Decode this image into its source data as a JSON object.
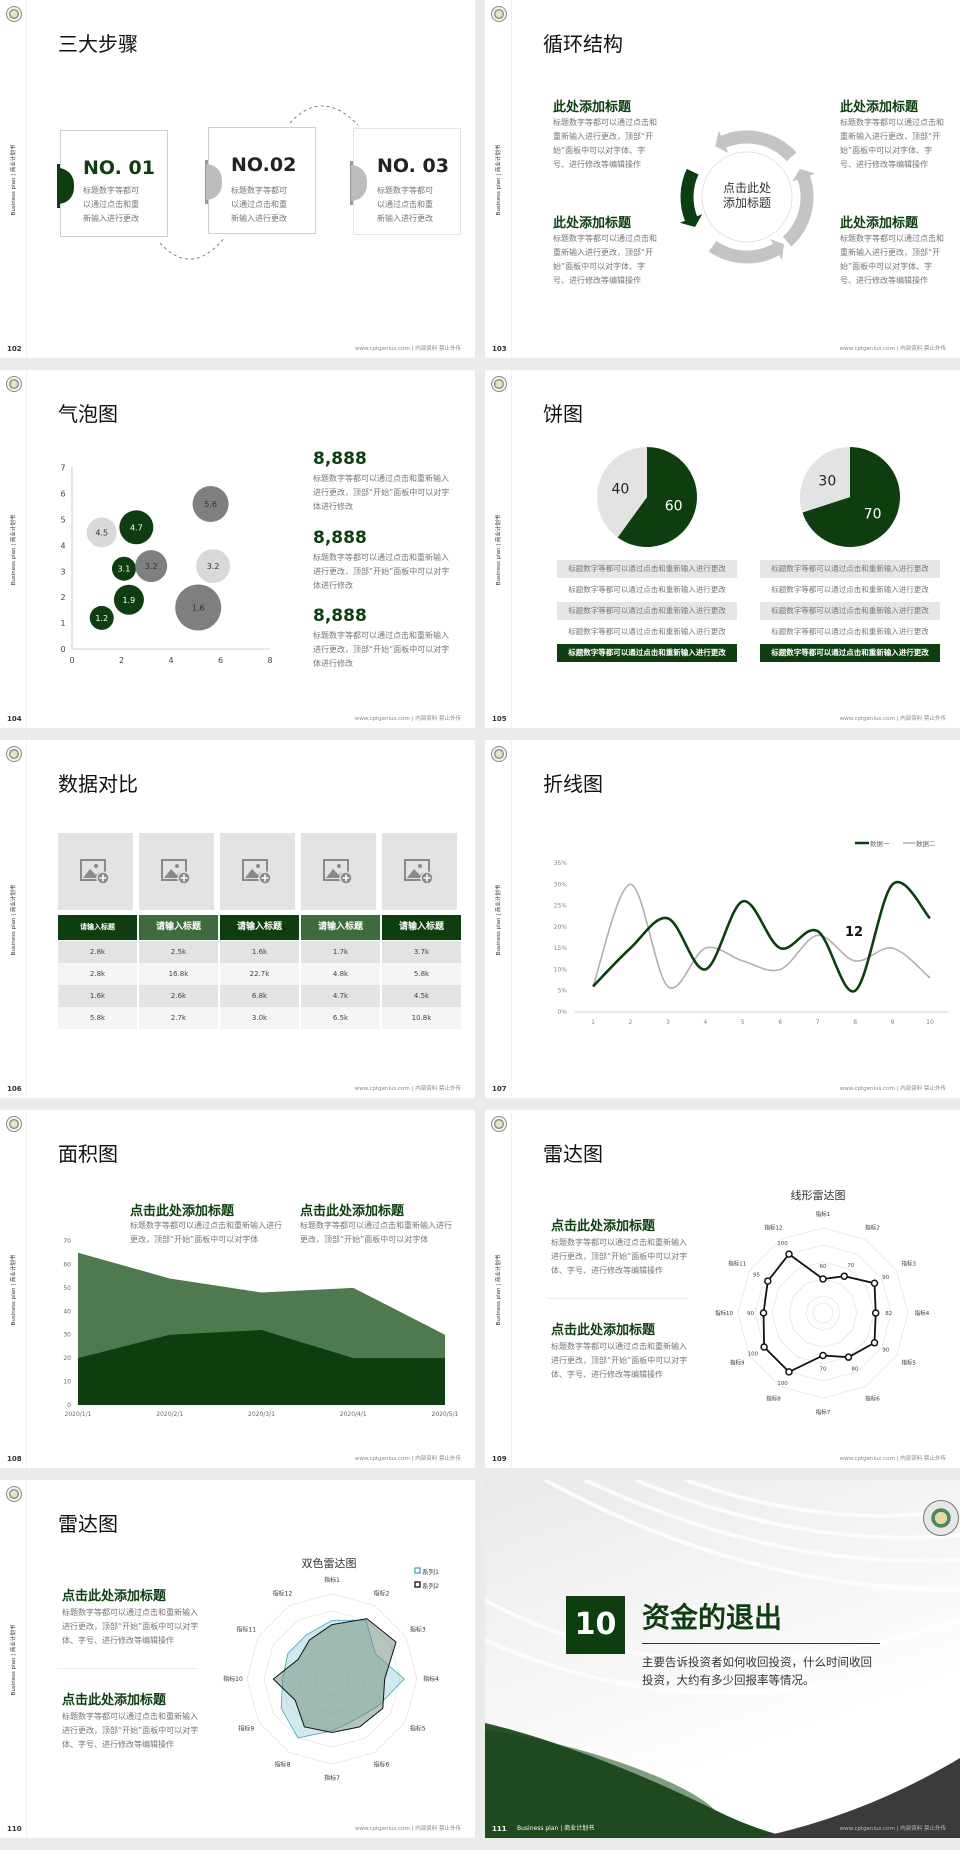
{
  "common": {
    "side_label": "Business plan | 商业计划书",
    "footer": "www.cptgenius.com | 内部资料 禁止外传"
  },
  "colors": {
    "primary_green": "#0e3e10",
    "mid_green": "#3e6b3e",
    "area_back": "#4f7a50",
    "gray": "#bdbdbd",
    "light_gray": "#e0e0e0",
    "teal": "#4aa3b5"
  },
  "slides": {
    "s102": {
      "page": "102",
      "title": "三大步骤",
      "steps": [
        {
          "no": "NO. 01",
          "desc": "标题数字等都可以通过点击和重新输入进行更改"
        },
        {
          "no": "NO.02",
          "desc": "标题数字等都可以通过点击和重新输入进行更改"
        },
        {
          "no": "NO. 03",
          "desc": "标题数字等都可以通过点击和重新输入进行更改"
        }
      ]
    },
    "s103": {
      "page": "103",
      "title": "循环结构",
      "center_line1": "点击此处",
      "center_line2": "添加标题",
      "blocks": [
        {
          "heading": "此处添加标题",
          "desc": "标题数字等都可以通过点击和重新输入进行更改，顶部“开始”面板中可以对字体、字号、进行修改等编辑操作"
        },
        {
          "heading": "此处添加标题",
          "desc": "标题数字等都可以通过点击和重新输入进行更改，顶部“开始”面板中可以对字体、字号、进行修改等编辑操作"
        },
        {
          "heading": "此处添加标题",
          "desc": "标题数字等都可以通过点击和重新输入进行更改，顶部“开始”面板中可以对字体、字号、进行修改等编辑操作"
        },
        {
          "heading": "此处添加标题",
          "desc": "标题数字等都可以通过点击和重新输入进行更改，顶部“开始”面板中可以对字体、字号、进行修改等编辑操作"
        }
      ]
    },
    "s104": {
      "page": "104",
      "title": "气泡图",
      "stats": [
        {
          "value": "8,888",
          "desc": "标题数字等都可以通过点击和重新输入进行更改，顶部“开始”面板中可以对字体进行修改"
        },
        {
          "value": "8,888",
          "desc": "标题数字等都可以通过点击和重新输入进行更改，顶部“开始”面板中可以对字体进行修改"
        },
        {
          "value": "8,888",
          "desc": "标题数字等都可以通过点击和重新输入进行更改，顶部“开始”面板中可以对字体进行修改"
        }
      ]
    },
    "s105": {
      "page": "105",
      "title": "饼图",
      "rows_left": [
        "标题数字等都可以通过点击和重新输入进行更改",
        "标题数字等都可以通过点击和重新输入进行更改",
        "标题数字等都可以通过点击和重新输入进行更改",
        "标题数字等都可以通过点击和重新输入进行更改",
        "标题数字等都可以通过点击和重新输入进行更改"
      ],
      "rows_right": [
        "标题数字等都可以通过点击和重新输入进行更改",
        "标题数字等都可以通过点击和重新输入进行更改",
        "标题数字等都可以通过点击和重新输入进行更改",
        "标题数字等都可以通过点击和重新输入进行更改",
        "标题数字等都可以通过点击和重新输入进行更改"
      ]
    },
    "s106": {
      "page": "106",
      "title": "数据对比",
      "headers": [
        "请输入标题",
        "请输入标题",
        "请输入标题",
        "请输入标题",
        "请输入标题"
      ],
      "rows": [
        [
          "2.8k",
          "2.5k",
          "1.6k",
          "1.7k",
          "3.7k"
        ],
        [
          "2.8k",
          "16.8k",
          "22.7k",
          "4.8k",
          "5.8k"
        ],
        [
          "1.6k",
          "2.6k",
          "6.8k",
          "4.7k",
          "4.5k"
        ],
        [
          "5.8k",
          "2.7k",
          "3.0k",
          "6.5k",
          "10.8k"
        ]
      ]
    },
    "s107": {
      "page": "107",
      "title": "折线图"
    },
    "s108": {
      "page": "108",
      "title": "面积图",
      "blocks": [
        {
          "heading": "点击此处添加标题",
          "desc": "标题数字等都可以通过点击和重新输入进行更改，顶部“开始”面板中可以对字体"
        },
        {
          "heading": "点击此处添加标题",
          "desc": "标题数字等都可以通过点击和重新输入进行更改，顶部“开始”面板中可以对字体"
        }
      ]
    },
    "s109": {
      "page": "109",
      "title": "雷达图",
      "blocks": [
        {
          "heading": "点击此处添加标题",
          "desc": "标题数字等都可以通过点击和重新输入进行更改，顶部“开始”面板中可以对字体、字号、进行修改等编辑操作"
        },
        {
          "heading": "点击此处添加标题",
          "desc": "标题数字等都可以通过点击和重新输入进行更改，顶部“开始”面板中可以对字体、字号、进行修改等编辑操作"
        }
      ]
    },
    "s110": {
      "page": "110",
      "title": "雷达图",
      "blocks": [
        {
          "heading": "点击此处添加标题",
          "desc": "标题数字等都可以通过点击和重新输入进行更改，顶部“开始”面板中可以对字体、字号、进行修改等编辑操作"
        },
        {
          "heading": "点击此处添加标题",
          "desc": "标题数字等都可以通过点击和重新输入进行更改，顶部“开始”面板中可以对字体、字号、进行修改等编辑操作"
        }
      ]
    },
    "s111": {
      "page": "111",
      "number": "10",
      "title": "资金的退出",
      "desc": "主要告诉投资者如何收回投资，什么时间收回投资，大约有多少回报率等情况。",
      "footer_left": "Business plan | 商业计划书"
    }
  },
  "chart_data": [
    {
      "type": "scatter",
      "variant": "bubble",
      "xlim": [
        0,
        8
      ],
      "ylim": [
        0,
        7
      ],
      "xticks": [
        "0",
        "2",
        "4",
        "6",
        "8"
      ],
      "yticks": [
        "0",
        "1",
        "2",
        "3",
        "4",
        "5",
        "6",
        "7"
      ],
      "grid": false,
      "points": [
        {
          "x": 1.2,
          "y": 4.5,
          "size": 15,
          "label": "4.5",
          "color": "#d9d9d9"
        },
        {
          "x": 2.6,
          "y": 4.7,
          "size": 17,
          "label": "4.7",
          "color": "#0e3e10"
        },
        {
          "x": 5.6,
          "y": 5.6,
          "size": 18,
          "label": "5.6",
          "color": "#7f7f7f"
        },
        {
          "x": 2.1,
          "y": 3.1,
          "size": 12,
          "label": "3.1",
          "color": "#0e3e10"
        },
        {
          "x": 3.2,
          "y": 3.2,
          "size": 16,
          "label": "3.2",
          "color": "#7f7f7f"
        },
        {
          "x": 5.7,
          "y": 3.2,
          "size": 17,
          "label": "3.2",
          "color": "#d9d9d9"
        },
        {
          "x": 2.3,
          "y": 1.9,
          "size": 15,
          "label": "1.9",
          "color": "#0e3e10"
        },
        {
          "x": 5.1,
          "y": 1.6,
          "size": 23,
          "label": "1.6",
          "color": "#7f7f7f"
        },
        {
          "x": 1.2,
          "y": 1.2,
          "size": 12,
          "label": "1.2",
          "color": "#0e3e10"
        }
      ]
    },
    {
      "type": "pie",
      "slices": [
        {
          "value": 60,
          "label": "60",
          "color": "#0e3e10"
        },
        {
          "value": 40,
          "label": "40",
          "color": "#e3e3e3"
        }
      ]
    },
    {
      "type": "pie",
      "slices": [
        {
          "value": 70,
          "label": "70",
          "color": "#0e3e10"
        },
        {
          "value": 30,
          "label": "30",
          "color": "#e3e3e3"
        }
      ]
    },
    {
      "type": "line",
      "smooth": true,
      "categories": [
        "1",
        "2",
        "3",
        "4",
        "5",
        "6",
        "7",
        "8",
        "9",
        "10"
      ],
      "ylim": [
        0,
        35
      ],
      "yticks": [
        "0%",
        "5%",
        "10%",
        "15%",
        "20%",
        "25%",
        "30%",
        "35%"
      ],
      "legend": "top-right",
      "grid": false,
      "series": [
        {
          "name": "数据一",
          "values": [
            6,
            15,
            22,
            10,
            26,
            15,
            19,
            5,
            30,
            22
          ],
          "color": "#0e3e10"
        },
        {
          "name": "数据二",
          "values": [
            6,
            30,
            6,
            15,
            12,
            10,
            18,
            12,
            15,
            8
          ],
          "color": "#b0b0b0"
        }
      ],
      "annotation": "12"
    },
    {
      "type": "area",
      "categories": [
        "2020/1/1",
        "2020/2/1",
        "2020/3/1",
        "2020/4/1",
        "2020/5/1"
      ],
      "ylim": [
        0,
        70
      ],
      "yticks": [
        "0",
        "10",
        "20",
        "30",
        "40",
        "50",
        "60",
        "70"
      ],
      "grid": false,
      "series": [
        {
          "values": [
            65,
            54,
            48,
            50,
            30
          ],
          "color": "#4f7a50"
        },
        {
          "values": [
            20,
            30,
            32,
            20,
            20
          ],
          "color": "#0e3e10"
        }
      ]
    },
    {
      "type": "radar",
      "title": "线形雷达图",
      "rlim": [
        20,
        120
      ],
      "axes": [
        "指标1",
        "指标2",
        "指标3",
        "指标4",
        "指标5",
        "指标6",
        "指标7",
        "指标8",
        "指标9",
        "指标10",
        "指标11",
        "指标12"
      ],
      "values": [
        60,
        70,
        90,
        82,
        90,
        80,
        70,
        100,
        100,
        90,
        95,
        100
      ],
      "value_labels": [
        "60",
        "70",
        "90",
        "82",
        "90",
        "80",
        "70",
        "100",
        "100",
        "90",
        "95",
        "100"
      ]
    },
    {
      "type": "radar",
      "title": "双色雷达图",
      "rlim": [
        0,
        100
      ],
      "legend": "top-right",
      "axes": [
        "指标1",
        "指标2",
        "指标3",
        "指标4",
        "指标5",
        "指标6",
        "指标7",
        "指标8",
        "指标9",
        "指标10",
        "指标11",
        "指标12"
      ],
      "series": [
        {
          "name": "系列1",
          "values": [
            69,
            80,
            59,
            85,
            63,
            55,
            61,
            80,
            69,
            58,
            60,
            60
          ],
          "color": "#4aa3b5"
        },
        {
          "name": "系列2",
          "values": [
            64,
            82,
            87,
            62,
            69,
            65,
            63,
            65,
            50,
            69,
            46,
            53
          ],
          "color": "#111111"
        }
      ]
    }
  ]
}
